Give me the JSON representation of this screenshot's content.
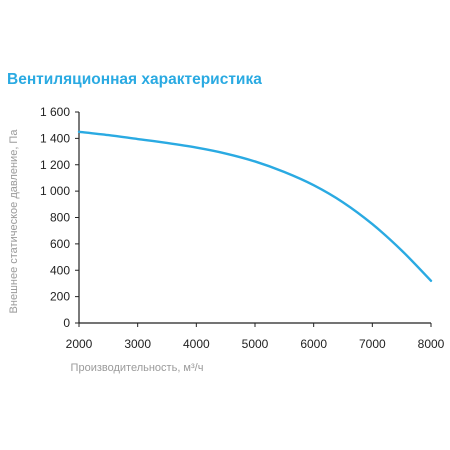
{
  "chart_data": {
    "type": "line",
    "title": "Вентиляционная характеристика",
    "xlabel": "Производительность, м³/ч",
    "ylabel": "Внешнее статическое давление, Па",
    "xlim": [
      2000,
      8000
    ],
    "ylim": [
      0,
      1600
    ],
    "x_ticks": [
      "2000",
      "3000",
      "4000",
      "5000",
      "6000",
      "7000",
      "8000"
    ],
    "y_ticks": [
      "0",
      "200",
      "400",
      "600",
      "800",
      "1 000",
      "1 200",
      "1 400",
      "1 600"
    ],
    "x_tick_values": [
      2000,
      3000,
      4000,
      5000,
      6000,
      7000,
      8000
    ],
    "y_tick_values": [
      0,
      200,
      400,
      600,
      800,
      1000,
      1200,
      1400,
      1600
    ],
    "grid": false,
    "colors": {
      "title": "#2aaae2",
      "line": "#2aaae2",
      "axis": "#222222",
      "axis_label": "#9a9a9a"
    },
    "series": [
      {
        "x": [
          2000,
          2500,
          3000,
          3500,
          4000,
          4500,
          5000,
          5500,
          6000,
          6500,
          7000,
          7500,
          8000
        ],
        "y": [
          1450,
          1425,
          1395,
          1365,
          1330,
          1285,
          1225,
          1145,
          1045,
          915,
          750,
          550,
          320
        ]
      }
    ]
  }
}
